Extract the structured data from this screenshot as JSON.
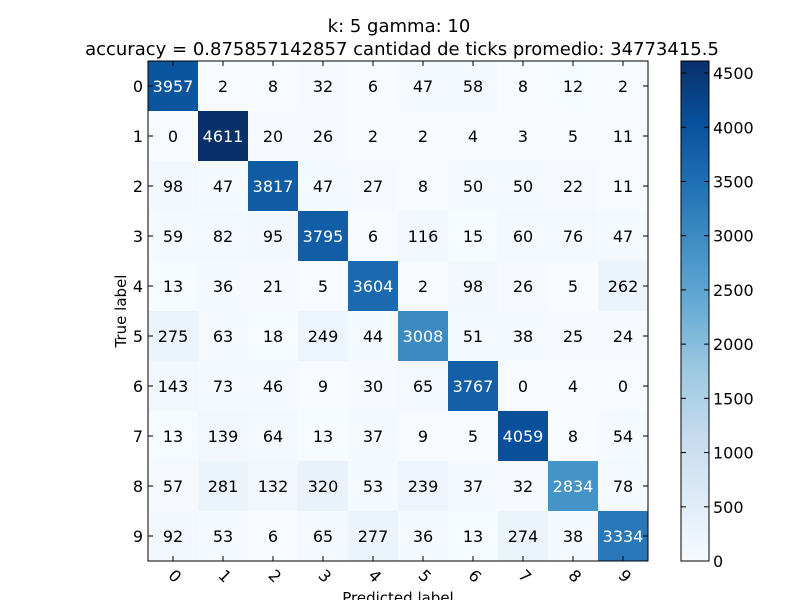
{
  "chart_data": {
    "type": "heatmap",
    "title": "k: 5 gamma: 10",
    "subtitle": "accuracy = 0.875857142857 cantidad de ticks promedio: 34773415.5",
    "xlabel": "Predicted label",
    "ylabel": "True label",
    "x_categories": [
      "0",
      "1",
      "2",
      "3",
      "4",
      "5",
      "6",
      "7",
      "8",
      "9"
    ],
    "y_categories": [
      "0",
      "1",
      "2",
      "3",
      "4",
      "5",
      "6",
      "7",
      "8",
      "9"
    ],
    "values": [
      [
        3957,
        2,
        8,
        32,
        6,
        47,
        58,
        8,
        12,
        2
      ],
      [
        0,
        4611,
        20,
        26,
        2,
        2,
        4,
        3,
        5,
        11
      ],
      [
        98,
        47,
        3817,
        47,
        27,
        8,
        50,
        50,
        22,
        11
      ],
      [
        59,
        82,
        95,
        3795,
        6,
        116,
        15,
        60,
        76,
        47
      ],
      [
        13,
        36,
        21,
        5,
        3604,
        2,
        98,
        26,
        5,
        262
      ],
      [
        275,
        63,
        18,
        249,
        44,
        3008,
        51,
        38,
        25,
        24
      ],
      [
        143,
        73,
        46,
        9,
        30,
        65,
        3767,
        0,
        4,
        0
      ],
      [
        13,
        139,
        64,
        13,
        37,
        9,
        5,
        4059,
        8,
        54
      ],
      [
        57,
        281,
        132,
        320,
        53,
        239,
        37,
        32,
        2834,
        78
      ],
      [
        92,
        53,
        6,
        65,
        277,
        36,
        13,
        274,
        38,
        3334
      ]
    ],
    "colorbar": {
      "range": [
        0,
        4611
      ],
      "ticks": [
        0,
        500,
        1000,
        1500,
        2000,
        2500,
        3000,
        3500,
        4000,
        4500
      ],
      "colormap": "Blues",
      "colors": [
        "#f7fbff",
        "#deebf7",
        "#c6dbef",
        "#9ecae1",
        "#6baed6",
        "#4292c6",
        "#2171b5",
        "#08519c",
        "#08306b"
      ]
    },
    "x_tick_rotation": "45deg",
    "grid": false
  }
}
